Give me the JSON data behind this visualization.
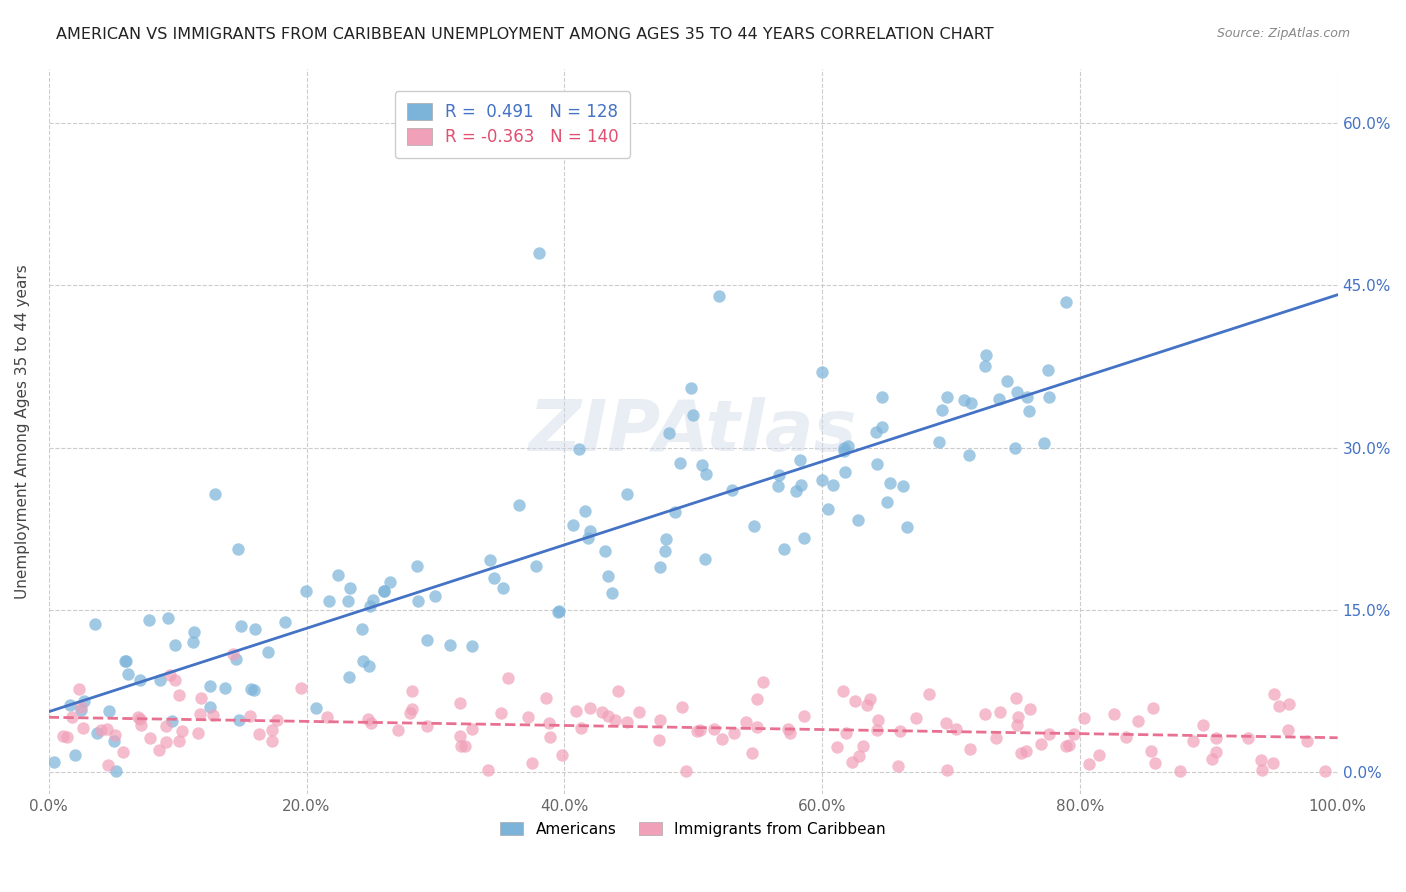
{
  "title": "AMERICAN VS IMMIGRANTS FROM CARIBBEAN UNEMPLOYMENT AMONG AGES 35 TO 44 YEARS CORRELATION CHART",
  "source": "Source: ZipAtlas.com",
  "ylabel": "Unemployment Among Ages 35 to 44 years",
  "xlim": [
    0.0,
    1.0
  ],
  "ylim": [
    -0.02,
    0.65
  ],
  "grid_color": "#cccccc",
  "background_color": "#ffffff",
  "watermark": "ZIPAtlas",
  "legend_entry_blue": "R =  0.491   N = 128",
  "legend_entry_pink": "R = -0.363   N = 140",
  "blue_color": "#7bb3d9",
  "pink_color": "#f0a0b8",
  "blue_line_color": "#4472c4",
  "pink_line_color": "#e87090",
  "r_blue": 0.491,
  "r_pink": -0.363,
  "n_blue": 128,
  "n_pink": 140,
  "legend_label_blue": "Americans",
  "legend_label_pink": "Immigrants from Caribbean",
  "title_color": "#222222",
  "source_color": "#888888",
  "axis_label_color": "#444444",
  "tick_color": "#666666",
  "right_tick_color": "#4472c4"
}
